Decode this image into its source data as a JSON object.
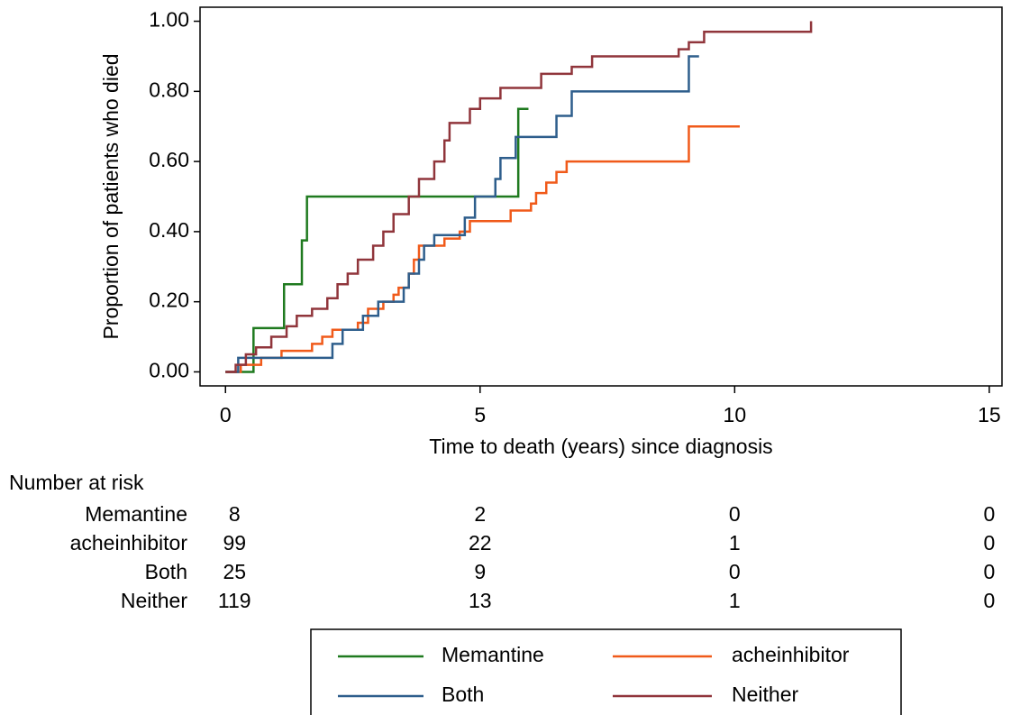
{
  "chart_data": {
    "type": "step",
    "x_label": "Time to death (years) since diagnosis",
    "y_label": "Proportion of patients who died",
    "xlim": [
      -0.5,
      15.25
    ],
    "ylim": [
      -0.04,
      1.04
    ],
    "xticks": [
      0,
      5,
      10,
      15
    ],
    "yticks": [
      {
        "value": 0,
        "label": "0.00"
      },
      {
        "value": 0.2,
        "label": "0.20"
      },
      {
        "value": 0.4,
        "label": "0.40"
      },
      {
        "value": 0.6,
        "label": "0.60"
      },
      {
        "value": 0.8,
        "label": "0.80"
      },
      {
        "value": 1,
        "label": "1.00"
      }
    ],
    "series": [
      {
        "name": "Memantine",
        "color": "#1f7a1f",
        "x": [
          0,
          0.5,
          0.55,
          1.15,
          1.5,
          1.6,
          5.75,
          5.95
        ],
        "values": [
          0,
          0,
          0.125,
          0.25,
          0.375,
          0.5,
          0.75,
          0.75
        ]
      },
      {
        "name": "acheinhibitor",
        "color": "#f05a1a",
        "x": [
          0,
          0.3,
          0.7,
          1.1,
          1.7,
          1.9,
          2.1,
          2.6,
          2.8,
          3.1,
          3.3,
          3.4,
          3.6,
          3.7,
          3.8,
          4.3,
          4.6,
          4.8,
          5.6,
          6.0,
          6.1,
          6.3,
          6.5,
          6.7,
          9.1,
          10.1
        ],
        "values": [
          0,
          0.02,
          0.04,
          0.06,
          0.08,
          0.1,
          0.12,
          0.14,
          0.18,
          0.2,
          0.22,
          0.24,
          0.28,
          0.32,
          0.36,
          0.38,
          0.4,
          0.43,
          0.46,
          0.48,
          0.51,
          0.54,
          0.57,
          0.6,
          0.7,
          0.7
        ]
      },
      {
        "name": "Both",
        "color": "#2e5e8c",
        "x": [
          0,
          0.25,
          2.1,
          2.3,
          2.7,
          3.0,
          3.5,
          3.6,
          3.8,
          3.9,
          4.1,
          4.7,
          4.9,
          5.3,
          5.4,
          5.7,
          6.5,
          6.8,
          9.1,
          9.3
        ],
        "values": [
          0,
          0.04,
          0.08,
          0.12,
          0.16,
          0.2,
          0.24,
          0.28,
          0.32,
          0.36,
          0.39,
          0.44,
          0.5,
          0.55,
          0.61,
          0.67,
          0.73,
          0.8,
          0.9,
          0.9
        ]
      },
      {
        "name": "Neither",
        "color": "#90353b",
        "x": [
          0,
          0.2,
          0.4,
          0.6,
          0.9,
          1.2,
          1.4,
          1.7,
          2.0,
          2.2,
          2.4,
          2.6,
          2.9,
          3.1,
          3.3,
          3.6,
          3.8,
          4.1,
          4.3,
          4.4,
          4.8,
          5.0,
          5.4,
          6.2,
          6.8,
          7.2,
          8.9,
          9.1,
          9.4,
          11.5
        ],
        "values": [
          0,
          0.02,
          0.05,
          0.07,
          0.1,
          0.13,
          0.16,
          0.18,
          0.21,
          0.25,
          0.28,
          0.32,
          0.36,
          0.4,
          0.45,
          0.5,
          0.55,
          0.6,
          0.66,
          0.71,
          0.75,
          0.78,
          0.81,
          0.85,
          0.87,
          0.9,
          0.92,
          0.94,
          0.97,
          1
        ]
      }
    ],
    "risk_table": {
      "title": "Number at risk",
      "rows": [
        {
          "name": "Memantine",
          "values": [
            8,
            2,
            0,
            0
          ]
        },
        {
          "name": "acheinhibitor",
          "values": [
            99,
            22,
            1,
            0
          ]
        },
        {
          "name": "Both",
          "values": [
            25,
            9,
            0,
            0
          ]
        },
        {
          "name": "Neither",
          "values": [
            119,
            13,
            1,
            0
          ]
        }
      ]
    }
  }
}
